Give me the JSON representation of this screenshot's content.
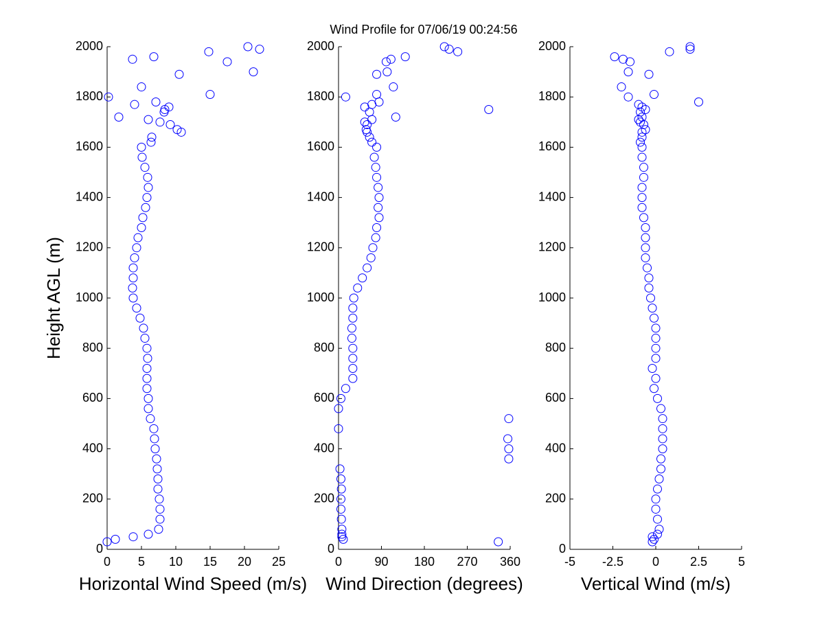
{
  "chart_data": [
    {
      "type": "scatter",
      "title": "Wind Profile for  07/06/19 00:24:56",
      "xlabel": "Horizontal Wind Speed (m/s)",
      "ylabel": "Height AGL (m)",
      "color": "#0000ff",
      "xlim": [
        0,
        25
      ],
      "xticks": [
        0,
        5,
        10,
        15,
        20,
        25
      ],
      "ylim": [
        0,
        2000
      ],
      "yticks": [
        0,
        200,
        400,
        600,
        800,
        1000,
        1200,
        1400,
        1600,
        1800,
        2000
      ],
      "x": [
        0,
        1.2,
        3.8,
        6,
        7.5,
        7.7,
        7.7,
        7.6,
        7.4,
        7.4,
        7.3,
        7.2,
        7,
        6.9,
        6.8,
        6.3,
        6,
        6,
        5.8,
        5.8,
        5.8,
        5.9,
        5.8,
        5.5,
        5.3,
        4.8,
        4.3,
        3.8,
        3.7,
        3.8,
        3.8,
        4,
        4.3,
        4.5,
        5,
        5.2,
        5.6,
        5.8,
        6,
        5.9,
        5.5,
        5.1,
        5,
        6.4,
        6.5,
        10.8,
        10.2,
        9.2,
        7.7,
        6,
        1.7,
        8.3,
        8.4,
        9,
        4,
        7.1,
        0.2,
        15,
        5,
        10.5,
        21.3,
        17.5,
        3.7,
        6.8,
        14.8,
        22.2,
        20.5
      ],
      "y": [
        30,
        40,
        50,
        60,
        80,
        120,
        160,
        200,
        240,
        280,
        320,
        360,
        400,
        440,
        480,
        520,
        560,
        600,
        640,
        680,
        720,
        760,
        800,
        840,
        880,
        920,
        960,
        1000,
        1040,
        1080,
        1120,
        1160,
        1200,
        1240,
        1280,
        1320,
        1360,
        1400,
        1440,
        1480,
        1520,
        1560,
        1600,
        1620,
        1640,
        1660,
        1670,
        1690,
        1700,
        1710,
        1720,
        1740,
        1750,
        1760,
        1770,
        1780,
        1800,
        1810,
        1840,
        1890,
        1900,
        1940,
        1950,
        1960,
        1980,
        1990,
        2000
      ]
    },
    {
      "type": "scatter",
      "xlabel": "Wind Direction (degrees)",
      "color": "#0000ff",
      "xlim": [
        0,
        360
      ],
      "xticks": [
        0,
        90,
        180,
        270,
        360
      ],
      "ylim": [
        0,
        2000
      ],
      "yticks": [
        0,
        200,
        400,
        600,
        800,
        1000,
        1200,
        1400,
        1600,
        1800,
        2000
      ],
      "x": [
        335,
        10,
        7,
        7,
        7,
        6,
        5,
        5,
        6,
        5,
        3,
        357,
        357,
        355,
        0,
        357,
        0,
        5,
        15,
        30,
        30,
        30,
        30,
        28,
        28,
        30,
        30,
        32,
        40,
        50,
        60,
        68,
        72,
        78,
        80,
        85,
        83,
        85,
        83,
        80,
        78,
        75,
        80,
        70,
        65,
        60,
        58,
        60,
        55,
        70,
        120,
        65,
        315,
        55,
        70,
        85,
        15,
        80,
        115,
        80,
        102,
        100,
        110,
        140,
        250,
        232,
        222
      ],
      "y": [
        30,
        40,
        50,
        60,
        80,
        120,
        160,
        200,
        240,
        280,
        320,
        360,
        400,
        440,
        480,
        520,
        560,
        600,
        640,
        680,
        720,
        760,
        800,
        840,
        880,
        920,
        960,
        1000,
        1040,
        1080,
        1120,
        1160,
        1200,
        1240,
        1280,
        1320,
        1360,
        1400,
        1440,
        1480,
        1520,
        1560,
        1600,
        1620,
        1640,
        1660,
        1670,
        1690,
        1700,
        1710,
        1720,
        1740,
        1750,
        1760,
        1770,
        1780,
        1800,
        1810,
        1840,
        1890,
        1900,
        1940,
        1950,
        1960,
        1980,
        1990,
        2000
      ]
    },
    {
      "type": "scatter",
      "xlabel": "Vertical Wind (m/s)",
      "color": "#0000ff",
      "xlim": [
        -5,
        5
      ],
      "xticks": [
        -5,
        -2.5,
        0,
        2.5,
        5
      ],
      "ylim": [
        0,
        2000
      ],
      "yticks": [
        0,
        200,
        400,
        600,
        800,
        1000,
        1200,
        1400,
        1600,
        1800,
        2000
      ],
      "x": [
        -0.2,
        -0.1,
        -0.2,
        0.1,
        0.2,
        0.1,
        0,
        0,
        0.1,
        0.2,
        0.3,
        0.3,
        0.4,
        0.4,
        0.4,
        0.4,
        0.3,
        0.1,
        -0.1,
        0,
        -0.2,
        0,
        0,
        0,
        0,
        -0.1,
        -0.2,
        -0.3,
        -0.4,
        -0.4,
        -0.5,
        -0.6,
        -0.6,
        -0.6,
        -0.6,
        -0.7,
        -0.8,
        -0.8,
        -0.8,
        -0.7,
        -0.7,
        -0.8,
        -0.8,
        -0.9,
        -0.8,
        -0.8,
        -0.6,
        -0.7,
        -0.9,
        -1,
        -0.8,
        -0.9,
        -0.6,
        -0.8,
        -1,
        2.5,
        -1.6,
        -0.1,
        -2,
        -0.4,
        -1.6,
        -1.5,
        -1.9,
        -2.4,
        0.8,
        2,
        2
      ],
      "y": [
        30,
        40,
        50,
        60,
        80,
        120,
        160,
        200,
        240,
        280,
        320,
        360,
        400,
        440,
        480,
        520,
        560,
        600,
        640,
        680,
        720,
        760,
        800,
        840,
        880,
        920,
        960,
        1000,
        1040,
        1080,
        1120,
        1160,
        1200,
        1240,
        1280,
        1320,
        1360,
        1400,
        1440,
        1480,
        1520,
        1560,
        1600,
        1620,
        1640,
        1660,
        1670,
        1690,
        1700,
        1710,
        1720,
        1740,
        1750,
        1760,
        1770,
        1780,
        1800,
        1810,
        1840,
        1890,
        1900,
        1940,
        1950,
        1960,
        1980,
        1990,
        2000
      ]
    }
  ]
}
